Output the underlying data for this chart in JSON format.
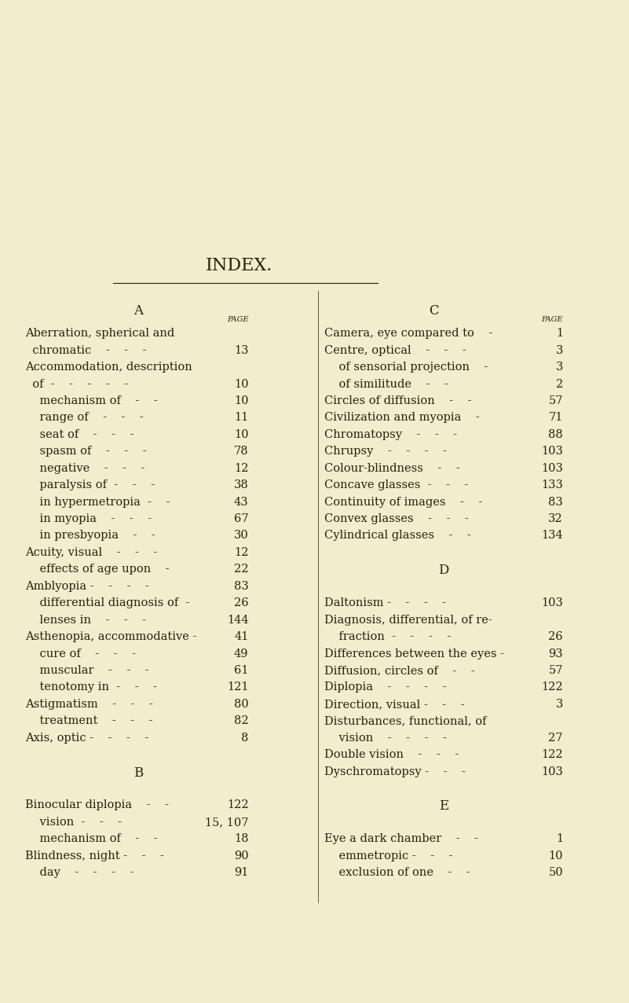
{
  "bg_color": "#f0eecc",
  "text_color": "#2a2010",
  "title": "INDEX.",
  "left_entries": [
    {
      "text": "Aberration, spherical and",
      "indent": 0,
      "page": ""
    },
    {
      "text": "  chromatic    -    -    -",
      "indent": 1,
      "page": "13"
    },
    {
      "text": "Accommodation, description",
      "indent": 0,
      "page": ""
    },
    {
      "text": "  of  -    -    -    -    -",
      "indent": 1,
      "page": "10"
    },
    {
      "text": "    mechanism of    -    -",
      "indent": 2,
      "page": "10"
    },
    {
      "text": "    range of    -    -    -",
      "indent": 2,
      "page": "11"
    },
    {
      "text": "    seat of    -    -    -",
      "indent": 2,
      "page": "10"
    },
    {
      "text": "    spasm of    -    -    -",
      "indent": 2,
      "page": "78"
    },
    {
      "text": "    negative    -    -    -",
      "indent": 2,
      "page": "12"
    },
    {
      "text": "    paralysis of  -    -    -",
      "indent": 2,
      "page": "38"
    },
    {
      "text": "    in hypermetropia  -    -",
      "indent": 2,
      "page": "43"
    },
    {
      "text": "    in myopia    -    -    -",
      "indent": 2,
      "page": "67"
    },
    {
      "text": "    in presbyopia    -    -",
      "indent": 2,
      "page": "30"
    },
    {
      "text": "Acuity, visual    -    -    -",
      "indent": 0,
      "page": "12"
    },
    {
      "text": "    effects of age upon    -",
      "indent": 2,
      "page": "22"
    },
    {
      "text": "Amblyopia -    -    -    -",
      "indent": 0,
      "page": "83"
    },
    {
      "text": "    differential diagnosis of  -",
      "indent": 2,
      "page": "26"
    },
    {
      "text": "    lenses in    -    -    -",
      "indent": 2,
      "page": "144"
    },
    {
      "text": "Asthenopia, accommodative -",
      "indent": 0,
      "page": "41"
    },
    {
      "text": "    cure of    -    -    -",
      "indent": 2,
      "page": "49"
    },
    {
      "text": "    muscular    -    -    -",
      "indent": 2,
      "page": "61"
    },
    {
      "text": "    tenotomy in  -    -    -",
      "indent": 2,
      "page": "121"
    },
    {
      "text": "Astigmatism    -    -    -",
      "indent": 0,
      "page": "80"
    },
    {
      "text": "    treatment    -    -    -",
      "indent": 2,
      "page": "82"
    },
    {
      "text": "Axis, optic -    -    -    -",
      "indent": 0,
      "page": "8"
    },
    {
      "text": "",
      "indent": 0,
      "page": ""
    },
    {
      "text": "B",
      "indent": 3,
      "page": ""
    },
    {
      "text": "",
      "indent": 0,
      "page": ""
    },
    {
      "text": "Binocular diplopia    -    -",
      "indent": 0,
      "page": "122"
    },
    {
      "text": "    vision  -    -    -",
      "indent": 2,
      "page": "15, 107"
    },
    {
      "text": "    mechanism of    -    -",
      "indent": 2,
      "page": "18"
    },
    {
      "text": "Blindness, night -    -    -",
      "indent": 0,
      "page": "90"
    },
    {
      "text": "    day    -    -    -    -",
      "indent": 2,
      "page": "91"
    }
  ],
  "right_entries": [
    {
      "text": "Camera, eye compared to    -",
      "indent": 0,
      "page": "1"
    },
    {
      "text": "Centre, optical    -    -    -",
      "indent": 0,
      "page": "3"
    },
    {
      "text": "    of sensorial projection    -",
      "indent": 2,
      "page": "3"
    },
    {
      "text": "    of similitude    -    -",
      "indent": 2,
      "page": "2"
    },
    {
      "text": "Circles of diffusion    -    -",
      "indent": 0,
      "page": "57"
    },
    {
      "text": "Civilization and myopia    -",
      "indent": 0,
      "page": "71"
    },
    {
      "text": "Chromatopsy    -    -    -",
      "indent": 0,
      "page": "88"
    },
    {
      "text": "Chrupsy    -    -    -    -",
      "indent": 0,
      "page": "103"
    },
    {
      "text": "Colour-blindness    -    -",
      "indent": 0,
      "page": "103"
    },
    {
      "text": "Concave glasses  -    -    -",
      "indent": 0,
      "page": "133"
    },
    {
      "text": "Continuity of images    -    -",
      "indent": 0,
      "page": "83"
    },
    {
      "text": "Convex glasses    -    -    -",
      "indent": 0,
      "page": "32"
    },
    {
      "text": "Cylindrical glasses    -    -",
      "indent": 0,
      "page": "134"
    },
    {
      "text": "",
      "indent": 0,
      "page": ""
    },
    {
      "text": "D",
      "indent": 3,
      "page": ""
    },
    {
      "text": "",
      "indent": 0,
      "page": ""
    },
    {
      "text": "Daltonism -    -    -    -",
      "indent": 0,
      "page": "103"
    },
    {
      "text": "Diagnosis, differential, of re-",
      "indent": 0,
      "page": ""
    },
    {
      "text": "    fraction  -    -    -    -",
      "indent": 2,
      "page": "26"
    },
    {
      "text": "Differences between the eyes -",
      "indent": 0,
      "page": "93"
    },
    {
      "text": "Diffusion, circles of    -    -",
      "indent": 0,
      "page": "57"
    },
    {
      "text": "Diplopia    -    -    -    -",
      "indent": 0,
      "page": "122"
    },
    {
      "text": "Direction, visual -    -    -",
      "indent": 0,
      "page": "3"
    },
    {
      "text": "Disturbances, functional, of",
      "indent": 0,
      "page": ""
    },
    {
      "text": "    vision    -    -    -    -",
      "indent": 2,
      "page": "27"
    },
    {
      "text": "Double vision    -    -    -",
      "indent": 0,
      "page": "122"
    },
    {
      "text": "Dyschromatopsy -    -    -",
      "indent": 0,
      "page": "103"
    },
    {
      "text": "",
      "indent": 0,
      "page": ""
    },
    {
      "text": "E",
      "indent": 3,
      "page": ""
    },
    {
      "text": "",
      "indent": 0,
      "page": ""
    },
    {
      "text": "Eye a dark chamber    -    -",
      "indent": 0,
      "page": "1"
    },
    {
      "text": "    emmetropic -    -    -",
      "indent": 2,
      "page": "10"
    },
    {
      "text": "    exclusion of one    -    -",
      "indent": 2,
      "page": "50"
    }
  ]
}
